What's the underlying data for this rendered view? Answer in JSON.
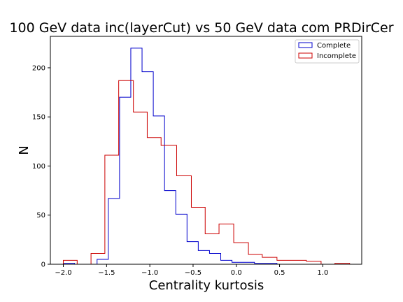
{
  "chart_data": {
    "type": "histogram",
    "title": "100 GeV data inc(layerCut) vs 50 GeV data com PRDirCer",
    "xlabel": "Centrality kurtosis",
    "ylabel": "N",
    "xlim": [
      -2.15,
      1.45
    ],
    "ylim": [
      0,
      232
    ],
    "xticks": [
      -2.0,
      -1.5,
      -1.0,
      -0.5,
      0.0,
      0.5,
      1.0
    ],
    "xtick_labels": [
      "−2.0",
      "−1.5",
      "−1.0",
      "−0.5",
      "0.0",
      "0.5",
      "1.0"
    ],
    "yticks": [
      0,
      50,
      100,
      150,
      200
    ],
    "ytick_labels": [
      "0",
      "50",
      "100",
      "150",
      "200"
    ],
    "legend_position": "top-right",
    "grid": false,
    "series": [
      {
        "name": "Complete",
        "color": "#0000cc",
        "bins": [
          {
            "x0": -2.0,
            "x1": -1.87,
            "y": 1
          },
          {
            "x0": -1.87,
            "x1": -1.74,
            "y": 0
          },
          {
            "x0": -1.74,
            "x1": -1.61,
            "y": 0
          },
          {
            "x0": -1.61,
            "x1": -1.48,
            "y": 5
          },
          {
            "x0": -1.48,
            "x1": -1.35,
            "y": 67
          },
          {
            "x0": -1.35,
            "x1": -1.22,
            "y": 170
          },
          {
            "x0": -1.22,
            "x1": -1.09,
            "y": 220
          },
          {
            "x0": -1.09,
            "x1": -0.96,
            "y": 196
          },
          {
            "x0": -0.96,
            "x1": -0.83,
            "y": 151
          },
          {
            "x0": -0.83,
            "x1": -0.7,
            "y": 75
          },
          {
            "x0": -0.7,
            "x1": -0.57,
            "y": 51
          },
          {
            "x0": -0.57,
            "x1": -0.44,
            "y": 23
          },
          {
            "x0": -0.44,
            "x1": -0.31,
            "y": 14
          },
          {
            "x0": -0.31,
            "x1": -0.18,
            "y": 11
          },
          {
            "x0": -0.18,
            "x1": -0.05,
            "y": 4
          },
          {
            "x0": -0.05,
            "x1": 0.08,
            "y": 2
          },
          {
            "x0": 0.08,
            "x1": 0.21,
            "y": 2
          },
          {
            "x0": 0.21,
            "x1": 0.34,
            "y": 1
          },
          {
            "x0": 0.34,
            "x1": 0.47,
            "y": 1
          },
          {
            "x0": 0.47,
            "x1": 0.6,
            "y": 0
          }
        ]
      },
      {
        "name": "Incomplete",
        "color": "#cc0000",
        "bins": [
          {
            "x0": -2.0,
            "x1": -1.84,
            "y": 4
          },
          {
            "x0": -1.84,
            "x1": -1.68,
            "y": 0
          },
          {
            "x0": -1.68,
            "x1": -1.52,
            "y": 11
          },
          {
            "x0": -1.52,
            "x1": -1.36,
            "y": 111
          },
          {
            "x0": -1.36,
            "x1": -1.19,
            "y": 187
          },
          {
            "x0": -1.19,
            "x1": -1.03,
            "y": 155
          },
          {
            "x0": -1.03,
            "x1": -0.87,
            "y": 129
          },
          {
            "x0": -0.87,
            "x1": -0.69,
            "y": 121
          },
          {
            "x0": -0.69,
            "x1": -0.52,
            "y": 90
          },
          {
            "x0": -0.52,
            "x1": -0.36,
            "y": 58
          },
          {
            "x0": -0.36,
            "x1": -0.2,
            "y": 31
          },
          {
            "x0": -0.2,
            "x1": -0.03,
            "y": 41
          },
          {
            "x0": -0.03,
            "x1": 0.14,
            "y": 22
          },
          {
            "x0": 0.14,
            "x1": 0.3,
            "y": 10
          },
          {
            "x0": 0.3,
            "x1": 0.47,
            "y": 7
          },
          {
            "x0": 0.47,
            "x1": 0.81,
            "y": 4
          },
          {
            "x0": 0.81,
            "x1": 0.98,
            "y": 3
          },
          {
            "x0": 0.98,
            "x1": 1.14,
            "y": 0
          },
          {
            "x0": 1.14,
            "x1": 1.31,
            "y": 1
          }
        ]
      }
    ]
  }
}
